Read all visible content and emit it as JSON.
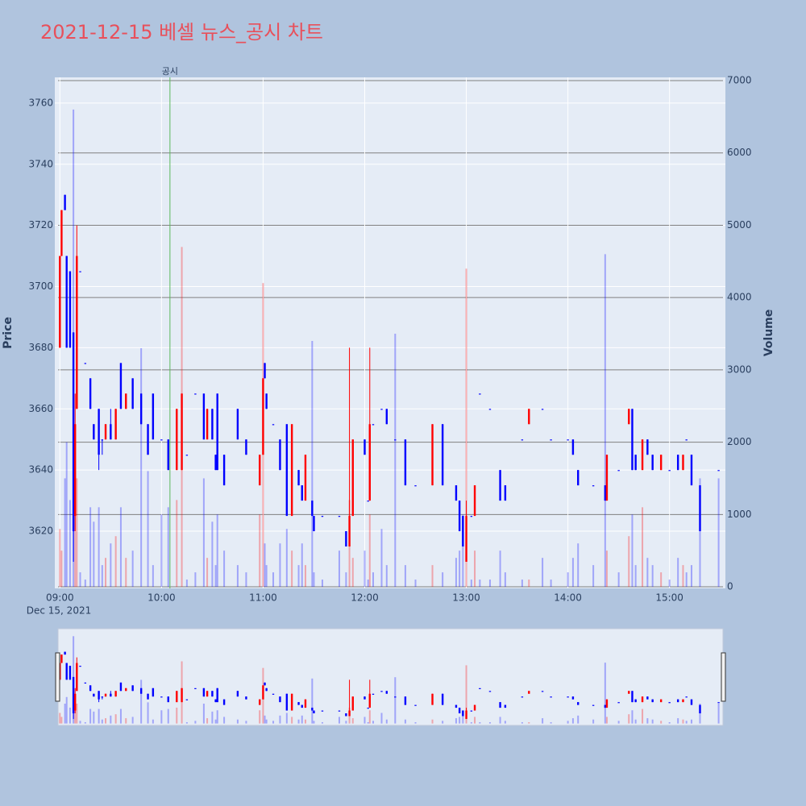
{
  "chart_data": {
    "type": "candlestick",
    "title": "2021-12-15 베셀 뉴스_공시 차트",
    "ylabel": "Price",
    "y2label": "Volume",
    "x_date_label": "Dec 15, 2021",
    "increasing_color": "#ff0000",
    "decreasing_color": "#0000ff",
    "annotation": {
      "x": "10:05",
      "text": "공시",
      "color": "#5cb85c"
    },
    "rangeslider": true,
    "xlim": [
      "08:57",
      "15:33"
    ],
    "xticks": [
      "09:00",
      "10:00",
      "11:00",
      "12:00",
      "13:00",
      "14:00",
      "15:00"
    ],
    "ylim": [
      3601.3,
      3768.4
    ],
    "yticks": [
      3620,
      3640,
      3660,
      3680,
      3700,
      3720,
      3740,
      3760
    ],
    "y2lim": [
      -22,
      7045
    ],
    "y2ticks": [
      0,
      1000,
      2000,
      3000,
      4000,
      5000,
      6000,
      7000
    ],
    "x": [
      "09:00",
      "09:01",
      "09:03",
      "09:04",
      "09:06",
      "09:08",
      "09:09",
      "09:10",
      "09:12",
      "09:15",
      "09:18",
      "09:20",
      "09:23",
      "09:25",
      "09:27",
      "09:30",
      "09:33",
      "09:36",
      "09:39",
      "09:43",
      "09:48",
      "09:52",
      "09:55",
      "10:00",
      "10:04",
      "10:09",
      "10:12",
      "10:15",
      "10:20",
      "10:25",
      "10:27",
      "10:30",
      "10:32",
      "10:33",
      "10:37",
      "10:45",
      "10:50",
      "10:58",
      "11:00",
      "11:01",
      "11:02",
      "11:06",
      "11:10",
      "11:14",
      "11:17",
      "11:21",
      "11:23",
      "11:25",
      "11:29",
      "11:30",
      "11:35",
      "11:45",
      "11:49",
      "11:51",
      "11:53",
      "12:00",
      "12:02",
      "12:03",
      "12:05",
      "12:10",
      "12:13",
      "12:18",
      "12:24",
      "12:30",
      "12:40",
      "12:46",
      "12:54",
      "12:56",
      "12:58",
      "13:00",
      "13:03",
      "13:05",
      "13:08",
      "13:14",
      "13:20",
      "13:23",
      "13:33",
      "13:37",
      "13:45",
      "13:50",
      "14:00",
      "14:03",
      "14:06",
      "14:15",
      "14:22",
      "14:23",
      "14:30",
      "14:36",
      "14:38",
      "14:40",
      "14:44",
      "14:47",
      "14:50",
      "14:55",
      "15:00",
      "15:05",
      "15:08",
      "15:10",
      "15:13",
      "15:18",
      "15:29"
    ],
    "open": [
      3680,
      3710,
      3730,
      3710,
      3705,
      3685,
      3625,
      3660,
      3705,
      3675,
      3670,
      3655,
      3660,
      3650,
      3650,
      3655,
      3650,
      3675,
      3660,
      3670,
      3665,
      3655,
      3665,
      3650,
      3650,
      3640,
      3640,
      3645,
      3665,
      3665,
      3650,
      3660,
      3645,
      3665,
      3645,
      3660,
      3650,
      3635,
      3645,
      3675,
      3665,
      3655,
      3650,
      3655,
      3625,
      3640,
      3635,
      3630,
      3630,
      3625,
      3625,
      3625,
      3620,
      3615,
      3625,
      3650,
      3630,
      3630,
      3655,
      3660,
      3660,
      3650,
      3650,
      3635,
      3635,
      3655,
      3635,
      3630,
      3625,
      3610,
      3625,
      3625,
      3665,
      3660,
      3640,
      3635,
      3650,
      3655,
      3660,
      3650,
      3650,
      3650,
      3640,
      3635,
      3635,
      3630,
      3640,
      3655,
      3660,
      3645,
      3640,
      3650,
      3645,
      3640,
      3640,
      3645,
      3640,
      3650,
      3645,
      3635,
      3640
    ],
    "high": [
      3710,
      3725,
      3730,
      3710,
      3705,
      3685,
      3665,
      3720,
      3705,
      3675,
      3670,
      3655,
      3660,
      3650,
      3655,
      3660,
      3660,
      3675,
      3665,
      3670,
      3665,
      3655,
      3665,
      3650,
      3650,
      3660,
      3665,
      3645,
      3665,
      3665,
      3660,
      3660,
      3645,
      3665,
      3645,
      3660,
      3650,
      3645,
      3670,
      3675,
      3665,
      3655,
      3650,
      3655,
      3655,
      3640,
      3635,
      3645,
      3630,
      3625,
      3625,
      3625,
      3620,
      3680,
      3650,
      3650,
      3630,
      3680,
      3655,
      3660,
      3660,
      3650,
      3650,
      3635,
      3655,
      3655,
      3635,
      3630,
      3625,
      3630,
      3625,
      3635,
      3665,
      3660,
      3640,
      3635,
      3650,
      3660,
      3660,
      3650,
      3650,
      3650,
      3640,
      3635,
      3635,
      3645,
      3640,
      3660,
      3660,
      3645,
      3650,
      3650,
      3645,
      3645,
      3640,
      3645,
      3645,
      3650,
      3645,
      3635,
      3640
    ],
    "low": [
      3680,
      3710,
      3725,
      3680,
      3680,
      3610,
      3620,
      3660,
      3705,
      3675,
      3660,
      3650,
      3640,
      3645,
      3650,
      3650,
      3650,
      3660,
      3660,
      3660,
      3655,
      3645,
      3650,
      3650,
      3640,
      3640,
      3640,
      3645,
      3665,
      3650,
      3650,
      3650,
      3640,
      3640,
      3635,
      3650,
      3645,
      3635,
      3645,
      3670,
      3660,
      3655,
      3640,
      3625,
      3625,
      3635,
      3630,
      3630,
      3625,
      3620,
      3625,
      3625,
      3615,
      3615,
      3625,
      3645,
      3630,
      3630,
      3655,
      3660,
      3655,
      3650,
      3635,
      3635,
      3635,
      3635,
      3630,
      3620,
      3615,
      3610,
      3625,
      3625,
      3665,
      3660,
      3630,
      3630,
      3650,
      3655,
      3660,
      3650,
      3650,
      3645,
      3635,
      3635,
      3630,
      3630,
      3640,
      3655,
      3640,
      3640,
      3640,
      3645,
      3640,
      3640,
      3640,
      3640,
      3640,
      3650,
      3635,
      3620,
      3640
    ],
    "close": [
      3710,
      3725,
      3725,
      3680,
      3680,
      3620,
      3655,
      3710,
      3705,
      3675,
      3660,
      3650,
      3645,
      3650,
      3655,
      3650,
      3660,
      3660,
      3665,
      3660,
      3655,
      3645,
      3650,
      3650,
      3640,
      3660,
      3665,
      3645,
      3665,
      3650,
      3660,
      3650,
      3640,
      3640,
      3635,
      3650,
      3645,
      3645,
      3670,
      3670,
      3660,
      3655,
      3640,
      3625,
      3655,
      3635,
      3630,
      3645,
      3625,
      3620,
      3625,
      3625,
      3615,
      3625,
      3650,
      3645,
      3630,
      3655,
      3655,
      3660,
      3655,
      3650,
      3635,
      3635,
      3655,
      3635,
      3630,
      3620,
      3615,
      3625,
      3625,
      3635,
      3665,
      3660,
      3630,
      3630,
      3650,
      3660,
      3660,
      3650,
      3650,
      3645,
      3635,
      3635,
      3630,
      3645,
      3640,
      3660,
      3640,
      3640,
      3650,
      3645,
      3640,
      3645,
      3640,
      3640,
      3645,
      3650,
      3635,
      3620,
      3640
    ],
    "volume": [
      800,
      500,
      1500,
      2000,
      1200,
      6600,
      1000,
      1500,
      200,
      100,
      1100,
      900,
      1100,
      300,
      400,
      600,
      700,
      1100,
      400,
      500,
      3300,
      1600,
      300,
      1000,
      1100,
      1200,
      4700,
      100,
      200,
      1500,
      400,
      900,
      300,
      1000,
      500,
      300,
      200,
      1000,
      4200,
      600,
      300,
      200,
      600,
      800,
      500,
      300,
      600,
      300,
      3400,
      200,
      100,
      500,
      200,
      1200,
      400,
      500,
      100,
      1000,
      200,
      800,
      300,
      3500,
      300,
      100,
      300,
      200,
      400,
      500,
      1000,
      4400,
      100,
      500,
      100,
      100,
      500,
      200,
      100,
      100,
      400,
      100,
      200,
      400,
      600,
      300,
      4600,
      500,
      200,
      700,
      1000,
      300,
      1100,
      400,
      300,
      200,
      100,
      400,
      300,
      200,
      300,
      1500,
      1500
    ]
  }
}
